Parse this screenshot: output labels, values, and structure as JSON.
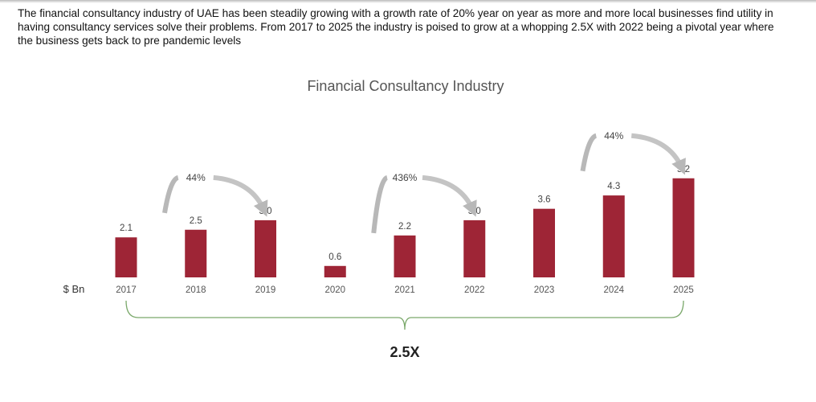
{
  "paragraph": "The financial consultancy industry of UAE has been steadily growing with a growth rate of 20% year on year as more and more local businesses find utility in having consultancy services solve their problems. From 2017 to 2025 the industry is poised to grow at a whopping 2.5X with 2022 being a pivotal year where the business gets back to pre pandemic levels",
  "chart_data": {
    "type": "bar",
    "title": "Financial Consultancy Industry",
    "unit_label": "$ Bn",
    "categories": [
      "2017",
      "2018",
      "2019",
      "2020",
      "2021",
      "2022",
      "2023",
      "2024",
      "2025"
    ],
    "values": [
      2.1,
      2.5,
      3.0,
      0.6,
      2.2,
      3.0,
      3.6,
      4.3,
      5.2
    ],
    "data_labels": [
      "2.1",
      "2.5",
      "3.0",
      "0.6",
      "2.2",
      "3.0",
      "3.6",
      "4.3",
      "5.2"
    ],
    "bar_color": "#9e2536",
    "annotations": [
      {
        "label": "44%",
        "from": "2017",
        "to": "2019"
      },
      {
        "label": "436%",
        "from": "2020",
        "to": "2022"
      },
      {
        "label": "44%",
        "from": "2023",
        "to": "2025"
      }
    ],
    "overall_growth": {
      "label": "2.5X",
      "from": "2017",
      "to": "2025",
      "brace_color": "#7aa86a"
    },
    "grid": false,
    "legend": "none"
  }
}
